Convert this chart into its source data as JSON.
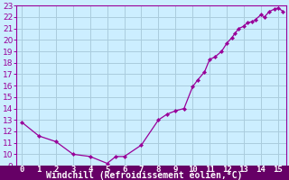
{
  "x": [
    0,
    1,
    2,
    3,
    4,
    5,
    5.5,
    6,
    7,
    8,
    8.5,
    9,
    9.5,
    10,
    10.3,
    10.7,
    11,
    11.3,
    11.7,
    12,
    12.3,
    12.5,
    12.7,
    13,
    13.2,
    13.5,
    13.7,
    14,
    14.2,
    14.5,
    14.8,
    15,
    15.3
  ],
  "y": [
    12.8,
    11.6,
    11.1,
    10.0,
    9.8,
    9.2,
    9.8,
    9.8,
    10.8,
    13.0,
    13.5,
    13.8,
    14.0,
    15.9,
    16.5,
    17.2,
    18.3,
    18.5,
    19.0,
    19.7,
    20.2,
    20.6,
    21.0,
    21.2,
    21.5,
    21.6,
    21.8,
    22.2,
    22.0,
    22.5,
    22.7,
    22.8,
    22.5
  ],
  "line_color": "#990099",
  "marker_color": "#990099",
  "bg_color": "#cceeff",
  "grid_color": "#aaccdd",
  "bottom_bar_color": "#660066",
  "xlabel": "Windchill (Refroidissement éolien,°C)",
  "xlabel_color": "#ffffff",
  "tick_color": "#990099",
  "spine_color": "#990099",
  "ylim": [
    9,
    23
  ],
  "xlim": [
    -0.3,
    15.5
  ],
  "yticks": [
    9,
    10,
    11,
    12,
    13,
    14,
    15,
    16,
    17,
    18,
    19,
    20,
    21,
    22,
    23
  ],
  "xticks": [
    0,
    1,
    2,
    3,
    4,
    5,
    6,
    7,
    8,
    9,
    10,
    11,
    12,
    13,
    14,
    15
  ],
  "label_fontsize": 6.5,
  "xlabel_fontsize": 7.0
}
